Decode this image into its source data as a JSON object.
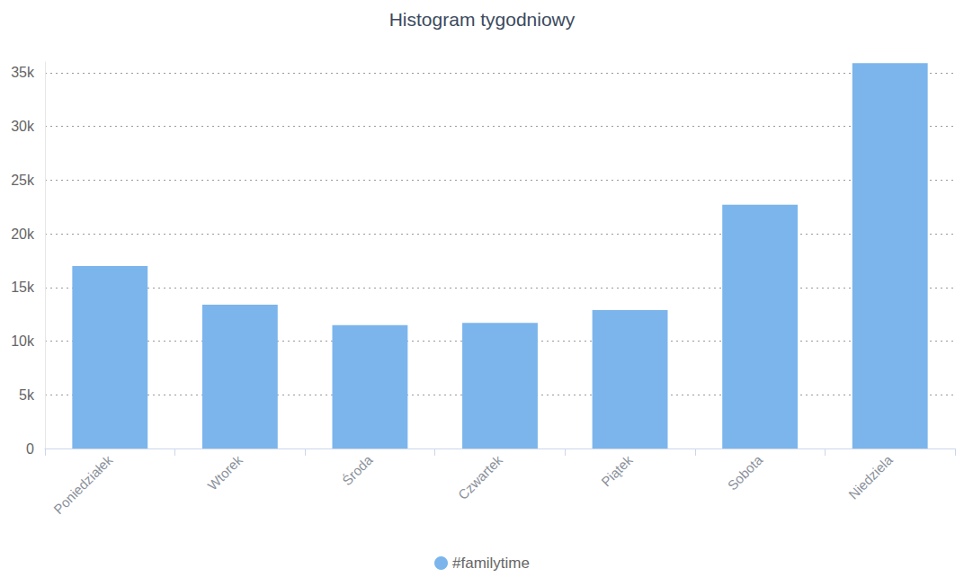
{
  "chart_data": {
    "type": "bar",
    "title": "Histogram tygodniowy",
    "categories": [
      "Poniedziałek",
      "Wtorek",
      "Środa",
      "Czwartek",
      "Piątek",
      "Sobota",
      "Niedziela"
    ],
    "series": [
      {
        "name": "#familytime",
        "color": "#7cb5ec",
        "values": [
          17000,
          13400,
          11500,
          11700,
          12900,
          22700,
          35900
        ]
      }
    ],
    "ylim": [
      0,
      36000
    ],
    "yticks": [
      {
        "value": 0,
        "label": "0"
      },
      {
        "value": 5000,
        "label": "5k"
      },
      {
        "value": 10000,
        "label": "10k"
      },
      {
        "value": 15000,
        "label": "15k"
      },
      {
        "value": 20000,
        "label": "20k"
      },
      {
        "value": 25000,
        "label": "25k"
      },
      {
        "value": 30000,
        "label": "30k"
      },
      {
        "value": 35000,
        "label": "35k"
      }
    ],
    "grid": true,
    "legend": "bottom"
  }
}
